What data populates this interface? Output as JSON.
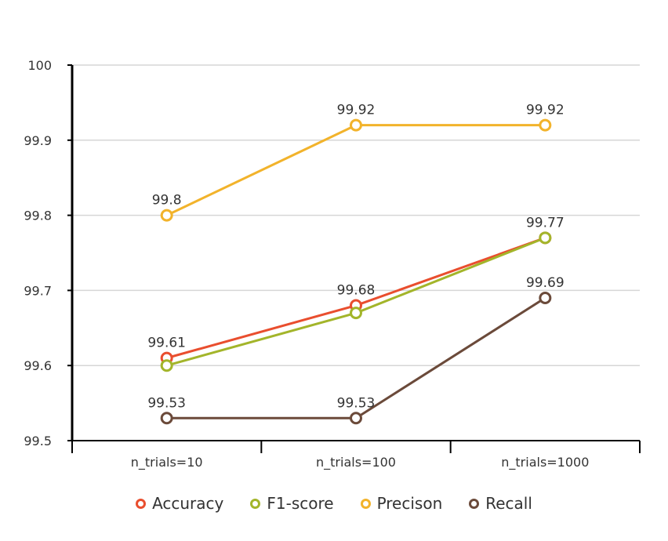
{
  "chart_data": {
    "type": "line",
    "categories": [
      "n_trials=10",
      "n_trials=100",
      "n_trials=1000"
    ],
    "ylim": [
      99.5,
      100
    ],
    "yticks": [
      "99.5",
      "99.6",
      "99.7",
      "99.8",
      "99.9",
      "100"
    ],
    "grid": true,
    "legend_position": "bottom",
    "series": [
      {
        "name": "Accuracy",
        "color": "#e94e2e",
        "values": [
          99.61,
          99.68,
          99.77
        ],
        "labels": [
          "99.61",
          "99.68",
          ""
        ]
      },
      {
        "name": "F1-score",
        "color": "#a3b52a",
        "values": [
          99.6,
          99.67,
          99.77
        ],
        "labels": [
          "",
          "",
          "99.77"
        ]
      },
      {
        "name": "Precison",
        "color": "#f2b32b",
        "values": [
          99.8,
          99.92,
          99.92
        ],
        "labels": [
          "99.8",
          "99.92",
          "99.92"
        ]
      },
      {
        "name": "Recall",
        "color": "#6b4a3a",
        "values": [
          99.53,
          99.53,
          99.69
        ],
        "labels": [
          "99.53",
          "99.53",
          "99.69"
        ]
      }
    ]
  }
}
